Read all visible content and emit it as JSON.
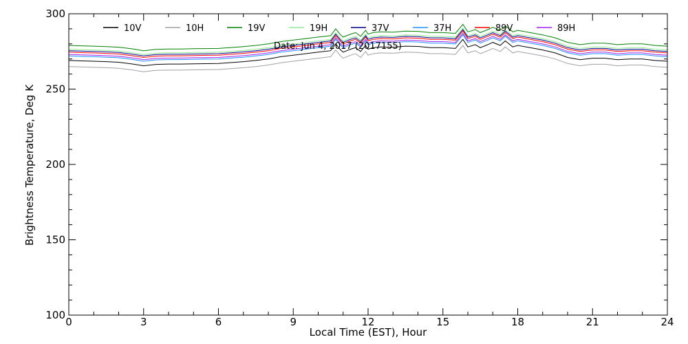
{
  "chart_data": {
    "type": "line",
    "annotation": "Date: Jun  4, 2017  (2017155)",
    "xlabel": "Local Time (EST), Hour",
    "ylabel": "Brightness Temperature, Deg K",
    "xlim": [
      0,
      24
    ],
    "ylim": [
      100,
      300
    ],
    "grid": false,
    "legend_position": "top",
    "x_ticks": [
      0,
      3,
      6,
      9,
      12,
      15,
      18,
      21,
      24
    ],
    "y_ticks": [
      100,
      150,
      200,
      250,
      300
    ],
    "x_tick_labels": [
      "0",
      "3",
      "6",
      "9",
      "12",
      "15",
      "18",
      "21",
      "24"
    ],
    "y_tick_labels": [
      "100",
      "150",
      "200",
      "250",
      "300"
    ],
    "x": [
      0,
      0.5,
      1,
      1.5,
      2,
      2.5,
      3,
      3.5,
      4,
      4.5,
      5,
      5.5,
      6,
      6.5,
      7,
      7.5,
      8,
      8.5,
      9,
      9.5,
      10,
      10.5,
      10.7,
      10.9,
      11,
      11.3,
      11.5,
      11.7,
      11.9,
      12,
      12.2,
      12.5,
      13,
      13.5,
      14,
      14.5,
      15,
      15.5,
      15.8,
      16,
      16.3,
      16.5,
      16.8,
      17,
      17.3,
      17.5,
      17.8,
      18,
      18.5,
      19,
      19.5,
      20,
      20.5,
      21,
      21.5,
      22,
      22.5,
      23,
      23.5,
      24
    ],
    "series": [
      {
        "name": "10V",
        "color": "#000000",
        "values": [
          269.0,
          268.7,
          268.5,
          268.2,
          267.8,
          266.8,
          265.5,
          266.4,
          266.6,
          266.6,
          266.8,
          266.9,
          267.0,
          267.6,
          268.2,
          269.0,
          270.0,
          271.5,
          272.5,
          273.5,
          274.5,
          275.5,
          280.0,
          276.0,
          274.5,
          276.5,
          277.5,
          275.0,
          279.0,
          276.5,
          277.5,
          278.0,
          277.8,
          278.5,
          278.3,
          277.5,
          277.5,
          277.0,
          283.0,
          278.0,
          279.5,
          277.5,
          279.5,
          281.0,
          279.0,
          282.0,
          278.0,
          279.0,
          277.5,
          276.0,
          274.0,
          271.0,
          269.5,
          270.5,
          270.5,
          269.5,
          270.0,
          270.0,
          269.0,
          268.5
        ]
      },
      {
        "name": "10H",
        "color": "#a0a0a0",
        "values": [
          265.0,
          264.7,
          264.5,
          264.2,
          263.8,
          262.8,
          261.5,
          262.4,
          262.6,
          262.6,
          262.8,
          262.9,
          263.0,
          263.6,
          264.2,
          265.0,
          266.0,
          267.5,
          268.5,
          269.5,
          270.5,
          271.5,
          276.0,
          272.0,
          270.5,
          272.5,
          273.5,
          271.0,
          275.0,
          272.5,
          273.5,
          274.0,
          273.8,
          274.5,
          274.3,
          273.5,
          273.5,
          273.0,
          279.0,
          274.0,
          275.5,
          273.5,
          275.5,
          277.0,
          275.0,
          278.0,
          274.0,
          275.0,
          273.5,
          272.0,
          270.0,
          267.0,
          265.5,
          266.5,
          266.5,
          265.5,
          266.0,
          266.0,
          265.0,
          264.5
        ]
      },
      {
        "name": "19V",
        "color": "#008000",
        "values": [
          279.0,
          278.7,
          278.5,
          278.2,
          277.8,
          276.8,
          275.5,
          276.4,
          276.6,
          276.6,
          276.8,
          276.9,
          277.0,
          277.6,
          278.2,
          279.0,
          280.0,
          281.5,
          282.5,
          283.5,
          284.5,
          285.5,
          290.0,
          286.0,
          284.5,
          286.5,
          287.5,
          285.0,
          289.0,
          286.5,
          287.5,
          288.0,
          287.8,
          288.5,
          288.3,
          287.5,
          287.5,
          287.0,
          293.0,
          288.0,
          289.5,
          287.5,
          289.5,
          291.0,
          289.0,
          292.0,
          288.0,
          289.0,
          287.5,
          286.0,
          284.0,
          281.0,
          279.5,
          280.5,
          280.5,
          279.5,
          280.0,
          280.0,
          279.0,
          278.5
        ]
      },
      {
        "name": "19H",
        "color": "#90ee90",
        "values": [
          276.5,
          276.2,
          276.0,
          275.7,
          275.3,
          274.3,
          273.0,
          273.9,
          274.1,
          274.1,
          274.3,
          274.4,
          274.5,
          275.1,
          275.7,
          276.5,
          277.5,
          279.0,
          280.0,
          281.0,
          282.0,
          283.0,
          287.5,
          283.5,
          282.0,
          284.0,
          285.0,
          282.5,
          286.5,
          284.0,
          285.0,
          285.5,
          285.3,
          286.0,
          285.8,
          285.0,
          285.0,
          284.5,
          290.5,
          285.5,
          287.0,
          285.0,
          287.0,
          288.5,
          286.5,
          289.5,
          285.5,
          286.5,
          285.0,
          283.5,
          281.5,
          278.5,
          277.0,
          278.0,
          278.0,
          277.0,
          277.5,
          277.5,
          276.5,
          276.0
        ]
      },
      {
        "name": "37V",
        "color": "#00008b",
        "values": [
          275.5,
          275.2,
          275.0,
          274.7,
          274.3,
          273.3,
          272.0,
          272.9,
          273.1,
          273.1,
          273.3,
          273.4,
          273.5,
          274.1,
          274.7,
          275.5,
          276.5,
          278.0,
          279.0,
          280.0,
          281.0,
          282.0,
          286.5,
          282.5,
          281.0,
          283.0,
          284.0,
          281.5,
          285.5,
          283.0,
          284.0,
          284.5,
          284.3,
          285.0,
          284.8,
          284.0,
          284.0,
          283.5,
          289.5,
          284.5,
          286.0,
          284.0,
          286.0,
          287.5,
          285.5,
          288.5,
          284.5,
          285.5,
          284.0,
          282.5,
          280.5,
          277.5,
          276.0,
          277.0,
          277.0,
          276.0,
          276.5,
          276.5,
          275.5,
          275.0
        ]
      },
      {
        "name": "37H",
        "color": "#1e90ff",
        "values": [
          272.0,
          271.7,
          271.5,
          271.2,
          270.8,
          269.8,
          268.5,
          269.4,
          269.6,
          269.6,
          269.8,
          269.9,
          270.0,
          270.6,
          271.2,
          272.0,
          273.0,
          274.5,
          275.5,
          276.5,
          277.5,
          278.5,
          283.0,
          279.0,
          277.5,
          279.5,
          280.5,
          278.0,
          282.0,
          279.5,
          280.5,
          281.0,
          280.8,
          281.5,
          281.3,
          280.5,
          280.5,
          280.0,
          286.0,
          281.0,
          282.5,
          280.5,
          282.5,
          284.0,
          282.0,
          285.0,
          281.0,
          282.0,
          280.5,
          279.0,
          277.0,
          274.0,
          272.5,
          273.5,
          273.5,
          272.5,
          273.0,
          273.0,
          272.0,
          271.5
        ]
      },
      {
        "name": "89V",
        "color": "#ff0000",
        "values": [
          274.5,
          274.2,
          274.0,
          273.7,
          273.3,
          272.3,
          271.0,
          271.9,
          272.1,
          272.1,
          272.3,
          272.4,
          272.5,
          273.1,
          273.7,
          274.5,
          275.5,
          277.0,
          278.0,
          279.0,
          280.0,
          281.0,
          285.5,
          281.5,
          280.0,
          282.0,
          283.0,
          280.5,
          284.5,
          282.0,
          283.0,
          283.5,
          283.3,
          284.0,
          283.8,
          283.0,
          283.0,
          282.5,
          288.5,
          283.5,
          285.0,
          283.0,
          285.0,
          286.5,
          284.5,
          287.5,
          283.5,
          284.5,
          283.0,
          281.5,
          279.5,
          276.5,
          275.0,
          276.0,
          276.0,
          275.0,
          275.5,
          275.5,
          274.5,
          274.0
        ]
      },
      {
        "name": "89H",
        "color": "#a020f0",
        "values": [
          273.0,
          272.7,
          272.5,
          272.2,
          271.8,
          270.8,
          269.5,
          270.4,
          270.6,
          270.6,
          270.8,
          270.9,
          271.0,
          271.6,
          272.2,
          273.0,
          274.0,
          275.5,
          276.5,
          277.5,
          278.5,
          279.5,
          284.0,
          280.0,
          278.5,
          280.5,
          281.5,
          279.0,
          283.0,
          280.5,
          281.5,
          282.0,
          281.8,
          282.5,
          282.3,
          281.5,
          281.5,
          281.0,
          287.0,
          282.0,
          283.5,
          281.5,
          283.5,
          285.0,
          283.0,
          286.0,
          282.0,
          283.0,
          281.5,
          280.0,
          278.0,
          275.0,
          273.5,
          274.5,
          274.5,
          273.5,
          274.0,
          274.0,
          273.0,
          272.5
        ]
      }
    ]
  }
}
